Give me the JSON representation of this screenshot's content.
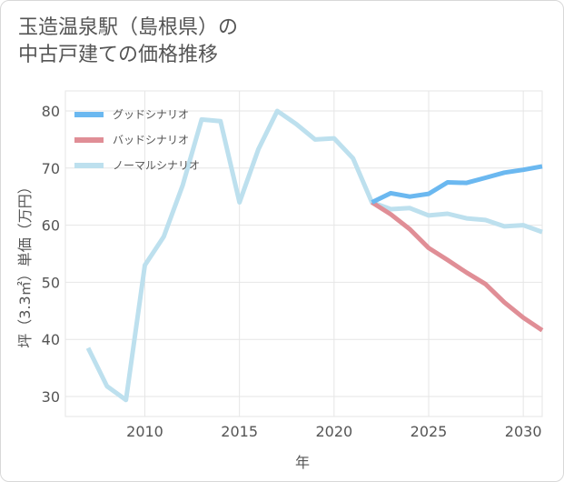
{
  "title_line1": "玉造温泉駅（島根県）の",
  "title_line2": "中古戸建ての価格推移",
  "chart_data": {
    "type": "line",
    "xlabel": "年",
    "ylabel": "坪（3.3㎡）単価（万円）",
    "xlim": [
      2005.8,
      2031
    ],
    "ylim": [
      26.5,
      83.5
    ],
    "xticks": [
      2010,
      2015,
      2020,
      2025,
      2030
    ],
    "yticks": [
      30,
      40,
      50,
      60,
      70,
      80
    ],
    "grid": true,
    "legend_position": "top-left",
    "series": [
      {
        "name": "グッドシナリオ",
        "color": "#6bb8f0",
        "x": [
          2022,
          2023,
          2024,
          2025,
          2026,
          2027,
          2028,
          2029,
          2030,
          2031
        ],
        "values": [
          64.0,
          65.6,
          65.0,
          65.5,
          67.5,
          67.4,
          68.3,
          69.2,
          69.7,
          70.3
        ]
      },
      {
        "name": "バッドシナリオ",
        "color": "#e08e96",
        "x": [
          2022,
          2023,
          2024,
          2025,
          2026,
          2027,
          2028,
          2029,
          2030,
          2031
        ],
        "values": [
          64.0,
          61.9,
          59.3,
          56.0,
          53.9,
          51.7,
          49.7,
          46.5,
          43.8,
          41.6
        ]
      },
      {
        "name": "ノーマルシナリオ",
        "color": "#bde0ee",
        "x": [
          2007,
          2008,
          2009,
          2010,
          2011,
          2012,
          2013,
          2014,
          2015,
          2016,
          2017,
          2018,
          2019,
          2020,
          2021,
          2022,
          2023,
          2024,
          2025,
          2026,
          2027,
          2028,
          2029,
          2030,
          2031
        ],
        "values": [
          38.5,
          31.8,
          29.4,
          53.0,
          58.0,
          67.0,
          78.5,
          78.2,
          64.0,
          73.3,
          80.0,
          77.7,
          75.0,
          75.2,
          71.7,
          64.0,
          62.8,
          63.0,
          61.7,
          62.0,
          61.2,
          60.9,
          59.8,
          60.0,
          58.8
        ]
      }
    ]
  }
}
